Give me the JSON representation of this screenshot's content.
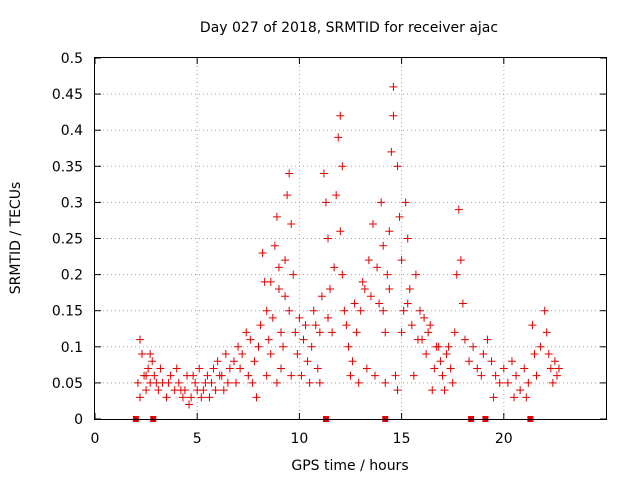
{
  "chart_data": {
    "type": "scatter",
    "title": "Day 027 of 2018, SRMTID for receiver ajac",
    "xlabel": "GPS time / hours",
    "ylabel": "SRMTID / TECUs",
    "xlim": [
      0,
      25
    ],
    "ylim": [
      0,
      0.5
    ],
    "xticks": [
      0,
      5,
      10,
      15,
      20
    ],
    "yticks": [
      0,
      0.05,
      0.1,
      0.15,
      0.2,
      0.25,
      0.3,
      0.35,
      0.4,
      0.45,
      0.5
    ],
    "grid": true,
    "color": "#e00000",
    "marker": "plus",
    "series": [
      {
        "name": "SRMTID",
        "points": [
          [
            2.1,
            0.05
          ],
          [
            2.2,
            0.11
          ],
          [
            2.3,
            0.09
          ],
          [
            2.4,
            0.06
          ],
          [
            2.5,
            0.04
          ],
          [
            2.6,
            0.07
          ],
          [
            2.7,
            0.05
          ],
          [
            2.8,
            0.08
          ],
          [
            2.9,
            0.06
          ],
          [
            3.0,
            0.05
          ],
          [
            2.2,
            0.03
          ],
          [
            2.5,
            0.06
          ],
          [
            2.7,
            0.09
          ],
          [
            3.1,
            0.04
          ],
          [
            3.3,
            0.05
          ],
          [
            3.5,
            0.03
          ],
          [
            3.7,
            0.06
          ],
          [
            3.9,
            0.04
          ],
          [
            4.1,
            0.05
          ],
          [
            4.3,
            0.03
          ],
          [
            3.2,
            0.07
          ],
          [
            3.6,
            0.05
          ],
          [
            4.0,
            0.07
          ],
          [
            4.2,
            0.04
          ],
          [
            4.5,
            0.06
          ],
          [
            4.7,
            0.03
          ],
          [
            4.9,
            0.05
          ],
          [
            5.1,
            0.07
          ],
          [
            5.3,
            0.04
          ],
          [
            5.5,
            0.06
          ],
          [
            4.4,
            0.04
          ],
          [
            4.8,
            0.06
          ],
          [
            5.2,
            0.03
          ],
          [
            5.4,
            0.05
          ],
          [
            5.6,
            0.03
          ],
          [
            5.8,
            0.07
          ],
          [
            6.0,
            0.08
          ],
          [
            6.2,
            0.06
          ],
          [
            6.4,
            0.09
          ],
          [
            6.6,
            0.07
          ],
          [
            5.7,
            0.05
          ],
          [
            6.1,
            0.06
          ],
          [
            6.5,
            0.05
          ],
          [
            6.8,
            0.08
          ],
          [
            7.0,
            0.1
          ],
          [
            7.2,
            0.09
          ],
          [
            7.4,
            0.12
          ],
          [
            7.6,
            0.11
          ],
          [
            7.8,
            0.08
          ],
          [
            8.0,
            0.1
          ],
          [
            7.1,
            0.07
          ],
          [
            7.5,
            0.06
          ],
          [
            7.9,
            0.03
          ],
          [
            8.1,
            0.13
          ],
          [
            8.2,
            0.23
          ],
          [
            8.3,
            0.19
          ],
          [
            8.4,
            0.15
          ],
          [
            8.5,
            0.11
          ],
          [
            8.6,
            0.09
          ],
          [
            8.7,
            0.14
          ],
          [
            8.8,
            0.24
          ],
          [
            8.9,
            0.28
          ],
          [
            9.0,
            0.18
          ],
          [
            9.1,
            0.12
          ],
          [
            9.2,
            0.1
          ],
          [
            9.3,
            0.22
          ],
          [
            9.4,
            0.31
          ],
          [
            9.5,
            0.34
          ],
          [
            9.6,
            0.27
          ],
          [
            9.7,
            0.2
          ],
          [
            9.5,
            0.15
          ],
          [
            9.8,
            0.12
          ],
          [
            9.9,
            0.09
          ],
          [
            10.0,
            0.14
          ],
          [
            10.2,
            0.11
          ],
          [
            10.4,
            0.08
          ],
          [
            10.6,
            0.1
          ],
          [
            10.8,
            0.13
          ],
          [
            11.0,
            0.12
          ],
          [
            11.1,
            0.17
          ],
          [
            11.2,
            0.34
          ],
          [
            11.3,
            0.3
          ],
          [
            11.4,
            0.25
          ],
          [
            11.5,
            0.18
          ],
          [
            11.6,
            0.12
          ],
          [
            11.7,
            0.21
          ],
          [
            11.8,
            0.31
          ],
          [
            11.9,
            0.39
          ],
          [
            12.0,
            0.42
          ],
          [
            12.1,
            0.35
          ],
          [
            12.0,
            0.26
          ],
          [
            12.1,
            0.2
          ],
          [
            12.2,
            0.15
          ],
          [
            12.4,
            0.1
          ],
          [
            12.6,
            0.08
          ],
          [
            12.8,
            0.12
          ],
          [
            13.0,
            0.15
          ],
          [
            13.2,
            0.18
          ],
          [
            13.4,
            0.22
          ],
          [
            13.6,
            0.27
          ],
          [
            13.8,
            0.21
          ],
          [
            13.9,
            0.16
          ],
          [
            14.0,
            0.3
          ],
          [
            14.1,
            0.24
          ],
          [
            14.2,
            0.12
          ],
          [
            14.3,
            0.2
          ],
          [
            14.4,
            0.26
          ],
          [
            14.5,
            0.37
          ],
          [
            14.6,
            0.46
          ],
          [
            14.6,
            0.42
          ],
          [
            14.8,
            0.35
          ],
          [
            14.9,
            0.28
          ],
          [
            15.0,
            0.22
          ],
          [
            15.1,
            0.15
          ],
          [
            15.2,
            0.3
          ],
          [
            15.3,
            0.25
          ],
          [
            15.4,
            0.18
          ],
          [
            15.5,
            0.13
          ],
          [
            15.7,
            0.2
          ],
          [
            15.9,
            0.15
          ],
          [
            14.7,
            0.06
          ],
          [
            14.8,
            0.04
          ],
          [
            16.0,
            0.11
          ],
          [
            16.2,
            0.09
          ],
          [
            16.4,
            0.13
          ],
          [
            16.6,
            0.07
          ],
          [
            16.8,
            0.1
          ],
          [
            17.0,
            0.06
          ],
          [
            17.2,
            0.09
          ],
          [
            17.4,
            0.07
          ],
          [
            17.6,
            0.12
          ],
          [
            17.7,
            0.2
          ],
          [
            17.8,
            0.29
          ],
          [
            17.9,
            0.22
          ],
          [
            18.0,
            0.16
          ],
          [
            18.1,
            0.11
          ],
          [
            18.3,
            0.08
          ],
          [
            18.5,
            0.1
          ],
          [
            18.7,
            0.07
          ],
          [
            18.9,
            0.06
          ],
          [
            16.5,
            0.04
          ],
          [
            17.1,
            0.04
          ],
          [
            17.5,
            0.05
          ],
          [
            19.0,
            0.09
          ],
          [
            19.2,
            0.11
          ],
          [
            19.4,
            0.08
          ],
          [
            19.6,
            0.06
          ],
          [
            19.8,
            0.05
          ],
          [
            20.0,
            0.07
          ],
          [
            20.2,
            0.05
          ],
          [
            20.4,
            0.08
          ],
          [
            20.6,
            0.06
          ],
          [
            20.8,
            0.04
          ],
          [
            21.0,
            0.07
          ],
          [
            21.2,
            0.05
          ],
          [
            21.4,
            0.13
          ],
          [
            21.5,
            0.09
          ],
          [
            21.6,
            0.06
          ],
          [
            21.8,
            0.1
          ],
          [
            22.0,
            0.15
          ],
          [
            22.1,
            0.12
          ],
          [
            22.2,
            0.09
          ],
          [
            22.3,
            0.07
          ],
          [
            22.4,
            0.05
          ],
          [
            22.5,
            0.08
          ],
          [
            22.6,
            0.06
          ],
          [
            22.7,
            0.07
          ],
          [
            19.5,
            0.03
          ],
          [
            20.5,
            0.03
          ],
          [
            21.1,
            0.03
          ],
          [
            10.1,
            0.06
          ],
          [
            10.5,
            0.05
          ],
          [
            10.9,
            0.07
          ],
          [
            11.0,
            0.05
          ],
          [
            12.5,
            0.06
          ],
          [
            12.9,
            0.05
          ],
          [
            13.3,
            0.07
          ],
          [
            13.7,
            0.06
          ],
          [
            14.2,
            0.05
          ],
          [
            15.6,
            0.06
          ],
          [
            9.1,
            0.07
          ],
          [
            9.6,
            0.06
          ],
          [
            8.9,
            0.05
          ],
          [
            8.4,
            0.06
          ],
          [
            7.7,
            0.05
          ],
          [
            6.9,
            0.05
          ],
          [
            6.3,
            0.04
          ],
          [
            5.9,
            0.04
          ],
          [
            5.0,
            0.04
          ],
          [
            4.6,
            0.02
          ],
          [
            8.6,
            0.19
          ],
          [
            9.0,
            0.21
          ],
          [
            9.3,
            0.17
          ],
          [
            10.3,
            0.13
          ],
          [
            10.7,
            0.15
          ],
          [
            11.4,
            0.14
          ],
          [
            12.3,
            0.13
          ],
          [
            12.7,
            0.16
          ],
          [
            13.1,
            0.19
          ],
          [
            13.5,
            0.17
          ],
          [
            14.1,
            0.15
          ],
          [
            14.4,
            0.18
          ],
          [
            15.0,
            0.12
          ],
          [
            15.3,
            0.16
          ],
          [
            15.8,
            0.11
          ],
          [
            16.1,
            0.14
          ],
          [
            16.3,
            0.12
          ],
          [
            16.7,
            0.1
          ],
          [
            16.9,
            0.08
          ],
          [
            17.3,
            0.1
          ]
        ]
      }
    ],
    "markers_on_axis": [
      2.0,
      2.85,
      11.3,
      14.2,
      18.4,
      19.1,
      21.3
    ]
  }
}
